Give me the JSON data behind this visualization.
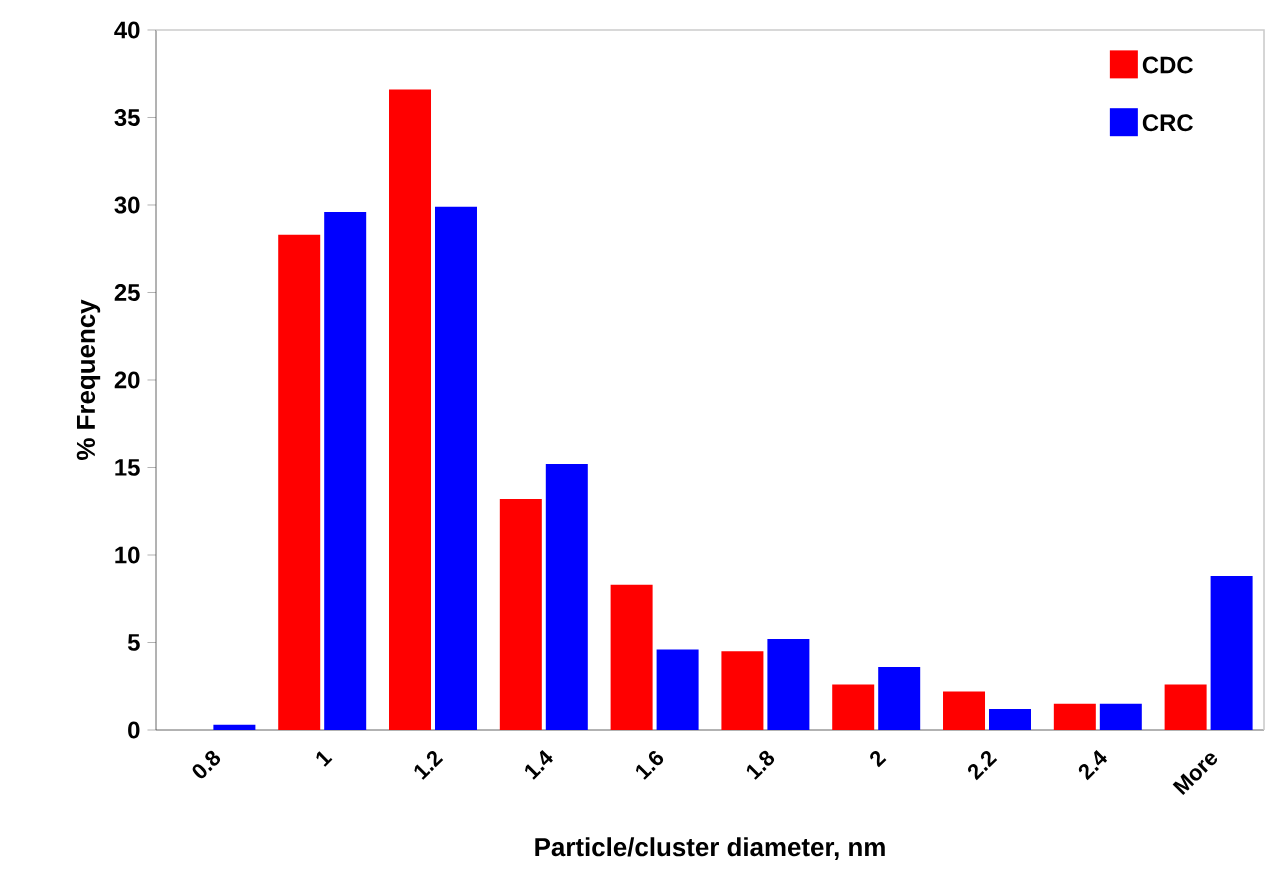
{
  "chart_data": {
    "type": "bar",
    "xlabel": "Particle/cluster diameter, nm",
    "ylabel": "% Frequency",
    "categories": [
      "0.8",
      "1",
      "1.2",
      "1.4",
      "1.6",
      "1.8",
      "2",
      "2.2",
      "2.4",
      "More"
    ],
    "series": [
      {
        "name": "CDC",
        "color": "#ff0000",
        "values": [
          0,
          28.3,
          36.6,
          13.2,
          8.3,
          4.5,
          2.6,
          2.2,
          1.5,
          2.6
        ]
      },
      {
        "name": "CRC",
        "color": "#0000ff",
        "values": [
          0.3,
          29.6,
          29.9,
          15.2,
          4.6,
          5.2,
          3.6,
          1.2,
          1.5,
          8.8
        ]
      }
    ],
    "ylim": [
      0,
      40
    ],
    "yticks": [
      0,
      5,
      10,
      15,
      20,
      25,
      30,
      35,
      40
    ],
    "legend": "top right",
    "grid": false
  }
}
